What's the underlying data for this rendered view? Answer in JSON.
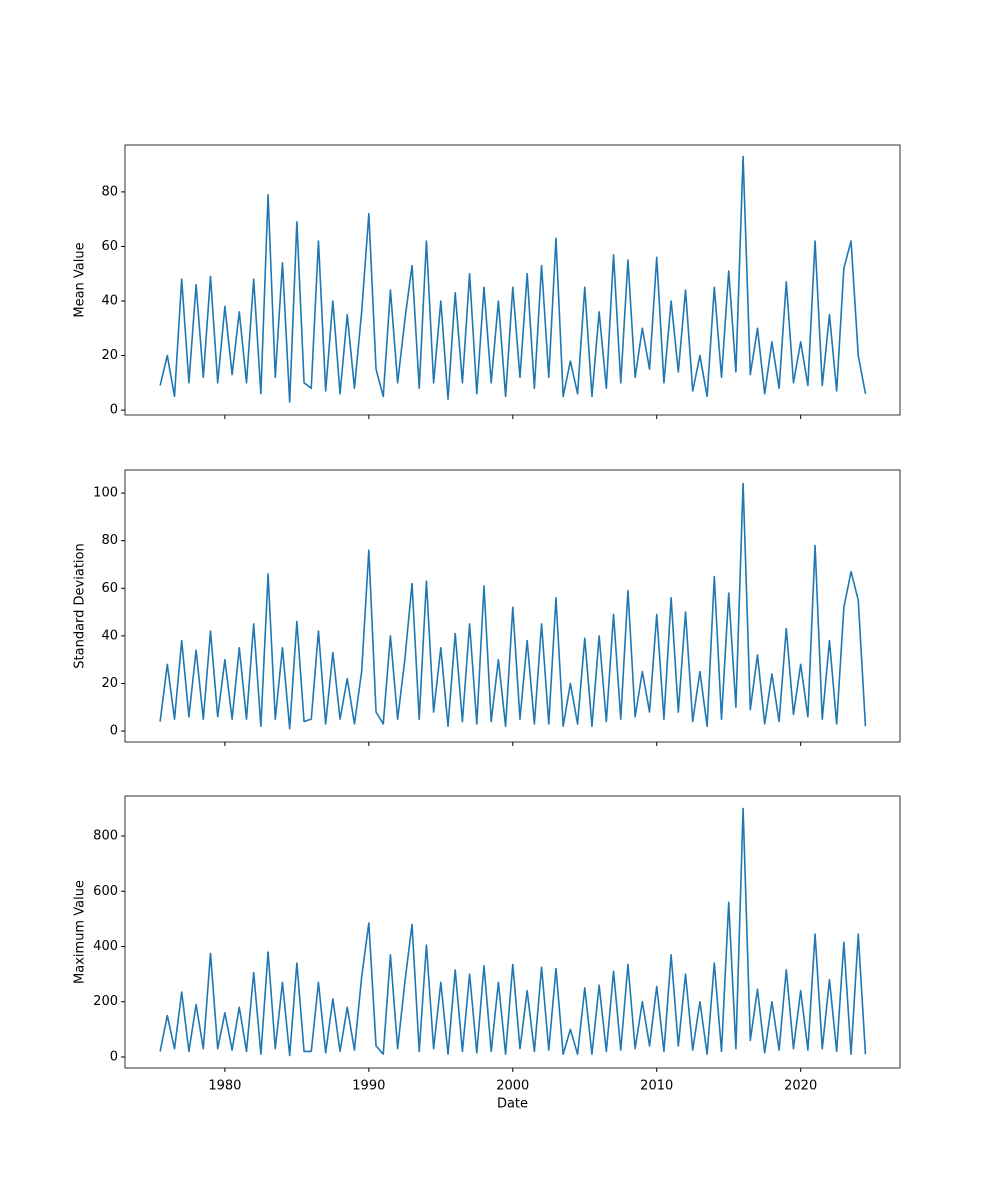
{
  "chart_data": [
    {
      "type": "line",
      "ylabel": "Mean Value",
      "color": "#1f77b4",
      "x": [
        1975.5,
        1976,
        1976.5,
        1977,
        1977.5,
        1978,
        1978.5,
        1979,
        1979.5,
        1980,
        1980.5,
        1981,
        1981.5,
        1982,
        1982.5,
        1983,
        1983.5,
        1984,
        1984.5,
        1985,
        1985.5,
        1986,
        1986.5,
        1987,
        1987.5,
        1988,
        1988.5,
        1989,
        1989.5,
        1990,
        1990.5,
        1991,
        1991.5,
        1992,
        1992.5,
        1993,
        1993.5,
        1994,
        1994.5,
        1995,
        1995.5,
        1996,
        1996.5,
        1997,
        1997.5,
        1998,
        1998.5,
        1999,
        1999.5,
        2000,
        2000.5,
        2001,
        2001.5,
        2002,
        2002.5,
        2003,
        2003.5,
        2004,
        2004.5,
        2005,
        2005.5,
        2006,
        2006.5,
        2007,
        2007.5,
        2008,
        2008.5,
        2009,
        2009.5,
        2010,
        2010.5,
        2011,
        2011.5,
        2012,
        2012.5,
        2013,
        2013.5,
        2014,
        2014.5,
        2015,
        2015.5,
        2016,
        2016.5,
        2017,
        2017.5,
        2018,
        2018.5,
        2019,
        2019.5,
        2020,
        2020.5,
        2021,
        2021.5,
        2022,
        2022.5,
        2023,
        2023.5,
        2024,
        2024.5
      ],
      "values": [
        9,
        20,
        5,
        48,
        10,
        46,
        12,
        49,
        10,
        38,
        13,
        36,
        10,
        48,
        6,
        79,
        12,
        54,
        3,
        69,
        10,
        8,
        62,
        7,
        40,
        6,
        35,
        8,
        36,
        72,
        15,
        5,
        44,
        10,
        33,
        53,
        8,
        62,
        10,
        40,
        4,
        43,
        10,
        50,
        6,
        45,
        10,
        40,
        5,
        45,
        12,
        50,
        8,
        53,
        12,
        63,
        5,
        18,
        6,
        45,
        5,
        36,
        8,
        57,
        10,
        55,
        12,
        30,
        15,
        56,
        10,
        40,
        14,
        44,
        7,
        20,
        5,
        45,
        12,
        51,
        14,
        93,
        13,
        30,
        6,
        25,
        8,
        47,
        10,
        25,
        9,
        62,
        9,
        35,
        7,
        52,
        62,
        20,
        6
      ],
      "xlim": [
        1973.06,
        2026.9
      ],
      "xticks": [
        1980,
        1990,
        2000,
        2010,
        2020
      ],
      "ylim": [
        -1.8,
        97.2
      ],
      "yticks": [
        0,
        20,
        40,
        60,
        80
      ]
    },
    {
      "type": "line",
      "ylabel": "Standard Deviation",
      "color": "#1f77b4",
      "x": [
        1975.5,
        1976,
        1976.5,
        1977,
        1977.5,
        1978,
        1978.5,
        1979,
        1979.5,
        1980,
        1980.5,
        1981,
        1981.5,
        1982,
        1982.5,
        1983,
        1983.5,
        1984,
        1984.5,
        1985,
        1985.5,
        1986,
        1986.5,
        1987,
        1987.5,
        1988,
        1988.5,
        1989,
        1989.5,
        1990,
        1990.5,
        1991,
        1991.5,
        1992,
        1992.5,
        1993,
        1993.5,
        1994,
        1994.5,
        1995,
        1995.5,
        1996,
        1996.5,
        1997,
        1997.5,
        1998,
        1998.5,
        1999,
        1999.5,
        2000,
        2000.5,
        2001,
        2001.5,
        2002,
        2002.5,
        2003,
        2003.5,
        2004,
        2004.5,
        2005,
        2005.5,
        2006,
        2006.5,
        2007,
        2007.5,
        2008,
        2008.5,
        2009,
        2009.5,
        2010,
        2010.5,
        2011,
        2011.5,
        2012,
        2012.5,
        2013,
        2013.5,
        2014,
        2014.5,
        2015,
        2015.5,
        2016,
        2016.5,
        2017,
        2017.5,
        2018,
        2018.5,
        2019,
        2019.5,
        2020,
        2020.5,
        2021,
        2021.5,
        2022,
        2022.5,
        2023,
        2023.5,
        2024,
        2024.5
      ],
      "values": [
        4,
        28,
        5,
        38,
        6,
        34,
        5,
        42,
        6,
        30,
        5,
        35,
        5,
        45,
        2,
        66,
        5,
        35,
        1,
        46,
        4,
        5,
        42,
        3,
        33,
        5,
        22,
        3,
        25,
        76,
        8,
        3,
        40,
        5,
        30,
        62,
        5,
        63,
        8,
        35,
        2,
        41,
        4,
        45,
        3,
        61,
        4,
        30,
        2,
        52,
        5,
        38,
        3,
        45,
        3,
        56,
        2,
        20,
        3,
        39,
        2,
        40,
        4,
        49,
        5,
        59,
        6,
        25,
        8,
        49,
        5,
        56,
        8,
        50,
        4,
        25,
        2,
        65,
        5,
        58,
        10,
        104,
        9,
        32,
        3,
        24,
        4,
        43,
        7,
        28,
        6,
        78,
        5,
        38,
        3,
        52,
        67,
        55,
        2
      ],
      "xlim": [
        1973.06,
        2026.9
      ],
      "xticks": [
        1980,
        1990,
        2000,
        2010,
        2020
      ],
      "ylim": [
        -4.6,
        109.7
      ],
      "yticks": [
        0,
        20,
        40,
        60,
        80,
        100
      ]
    },
    {
      "type": "line",
      "ylabel": "Maximum Value",
      "xlabel": "Date",
      "color": "#1f77b4",
      "x": [
        1975.5,
        1976,
        1976.5,
        1977,
        1977.5,
        1978,
        1978.5,
        1979,
        1979.5,
        1980,
        1980.5,
        1981,
        1981.5,
        1982,
        1982.5,
        1983,
        1983.5,
        1984,
        1984.5,
        1985,
        1985.5,
        1986,
        1986.5,
        1987,
        1987.5,
        1988,
        1988.5,
        1989,
        1989.5,
        1990,
        1990.5,
        1991,
        1991.5,
        1992,
        1992.5,
        1993,
        1993.5,
        1994,
        1994.5,
        1995,
        1995.5,
        1996,
        1996.5,
        1997,
        1997.5,
        1998,
        1998.5,
        1999,
        1999.5,
        2000,
        2000.5,
        2001,
        2001.5,
        2002,
        2002.5,
        2003,
        2003.5,
        2004,
        2004.5,
        2005,
        2005.5,
        2006,
        2006.5,
        2007,
        2007.5,
        2008,
        2008.5,
        2009,
        2009.5,
        2010,
        2010.5,
        2011,
        2011.5,
        2012,
        2012.5,
        2013,
        2013.5,
        2014,
        2014.5,
        2015,
        2015.5,
        2016,
        2016.5,
        2017,
        2017.5,
        2018,
        2018.5,
        2019,
        2019.5,
        2020,
        2020.5,
        2021,
        2021.5,
        2022,
        2022.5,
        2023,
        2023.5,
        2024,
        2024.5
      ],
      "values": [
        20,
        150,
        30,
        235,
        20,
        190,
        30,
        375,
        30,
        160,
        25,
        180,
        20,
        305,
        10,
        380,
        30,
        270,
        5,
        340,
        20,
        20,
        270,
        15,
        210,
        20,
        180,
        25,
        290,
        485,
        40,
        10,
        370,
        30,
        270,
        480,
        20,
        405,
        30,
        270,
        10,
        315,
        20,
        300,
        15,
        330,
        20,
        270,
        10,
        335,
        30,
        240,
        20,
        325,
        25,
        320,
        10,
        100,
        10,
        250,
        10,
        260,
        20,
        310,
        25,
        335,
        30,
        200,
        40,
        255,
        20,
        370,
        40,
        300,
        25,
        200,
        10,
        340,
        20,
        560,
        30,
        900,
        60,
        245,
        15,
        200,
        25,
        315,
        30,
        240,
        25,
        445,
        30,
        280,
        20,
        415,
        10,
        445,
        10
      ],
      "xlim": [
        1973.06,
        2026.9
      ],
      "xticks": [
        1980,
        1990,
        2000,
        2010,
        2020
      ],
      "ylim": [
        -40,
        945
      ],
      "yticks": [
        0,
        200,
        400,
        600,
        800
      ]
    }
  ]
}
